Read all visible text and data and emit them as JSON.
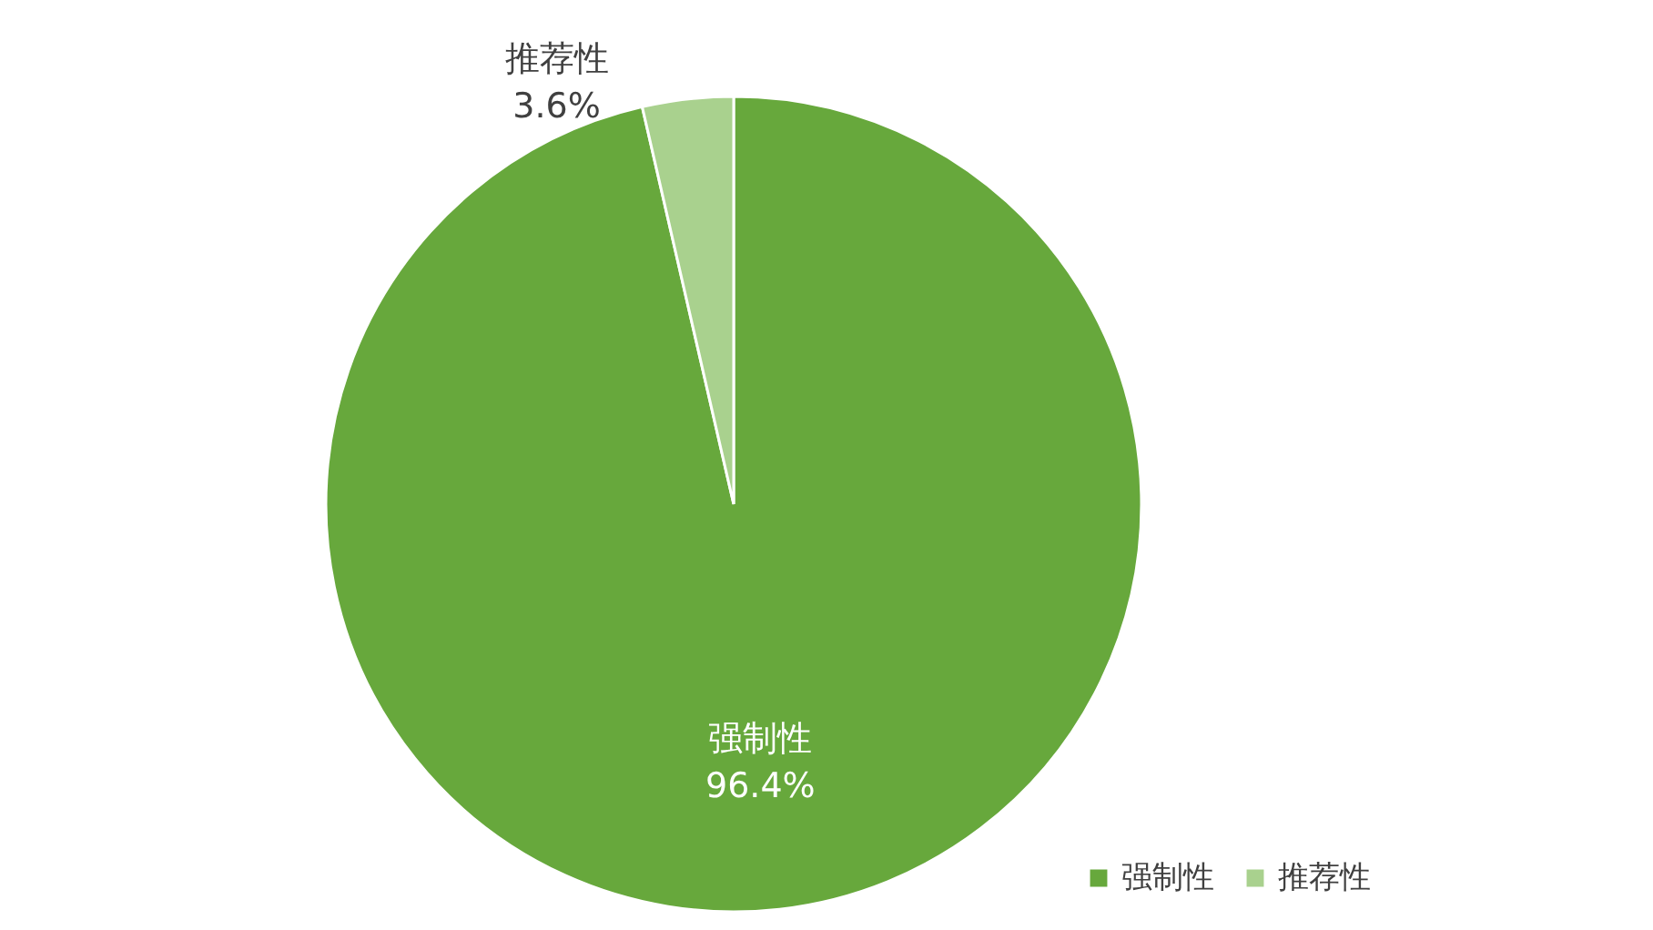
{
  "chart_data": {
    "type": "pie",
    "categories": [
      "强制性",
      "推荐性"
    ],
    "values": [
      96.4,
      3.6
    ],
    "colors": [
      "#67a83c",
      "#a9d18e"
    ],
    "value_labels": [
      "96.4%",
      "3.6%"
    ],
    "legend": "bottom right"
  }
}
